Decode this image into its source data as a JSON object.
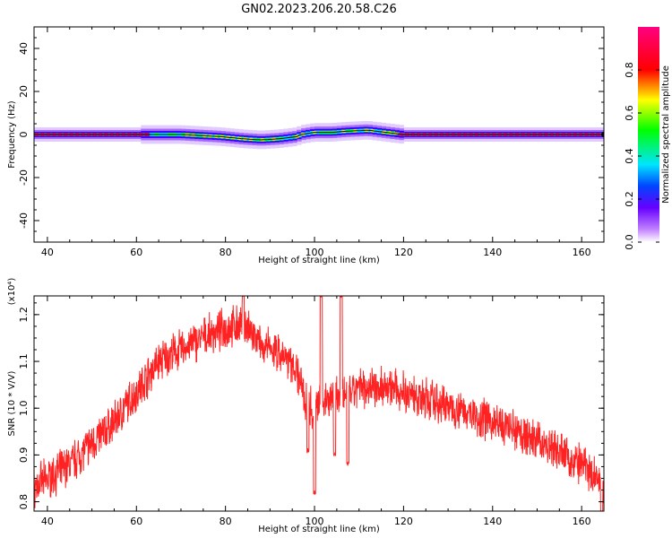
{
  "title": "GN02.2023.206.20.58.C26",
  "chart_data": [
    {
      "type": "heatmap",
      "xlabel": "Height of straight line (km)",
      "ylabel": "Frequency (Hz)",
      "xlim": [
        37,
        165
      ],
      "ylim": [
        -50,
        50
      ],
      "x_ticks": [
        40,
        60,
        80,
        100,
        120,
        140,
        160
      ],
      "y_ticks": [
        40,
        20,
        0,
        -20,
        -40
      ],
      "colorbar": {
        "label": "Normalized spectral amplitude",
        "ticks": [
          "0.0",
          "0.2",
          "0.4",
          "0.6",
          "0.8"
        ],
        "tick_values": [
          0.0,
          0.2,
          0.4,
          0.6,
          0.8
        ],
        "range": [
          0,
          1
        ],
        "colors": [
          "#ffffff",
          "#6600ff",
          "#00e5ff",
          "#00ff00",
          "#ffff00",
          "#ff0000",
          "#ff0080"
        ]
      },
      "ridge_frequency": {
        "x": [
          37,
          62,
          70,
          79,
          84,
          88,
          92,
          96,
          97,
          100,
          104,
          107,
          112,
          116,
          120,
          165
        ],
        "y": [
          0,
          0,
          0,
          -1,
          -2,
          -2.5,
          -2,
          -1,
          0,
          1,
          1,
          1.5,
          2,
          1,
          0,
          0
        ]
      }
    },
    {
      "type": "line",
      "xlabel": "Height of straight line (km)",
      "ylabel": "SNR (10 * V/V)",
      "yscale_label": "(x10⁴)",
      "xlim": [
        37,
        165
      ],
      "ylim": [
        0.78,
        1.24
      ],
      "x_ticks": [
        40,
        60,
        80,
        100,
        120,
        140,
        160
      ],
      "y_ticks": [
        1.2,
        1.1,
        1.0,
        0.9,
        0.8
      ],
      "series": [
        {
          "color": "#ff2222",
          "trend": {
            "x": [
              37,
              45,
              55,
              65,
              75,
              80,
              84,
              88,
              92,
              96,
              98,
              100,
              102,
              105,
              108,
              112,
              118,
              125,
              135,
              145,
              155,
              165
            ],
            "y": [
              0.83,
              0.88,
              0.97,
              1.1,
              1.15,
              1.17,
              1.18,
              1.13,
              1.12,
              1.08,
              1.02,
              0.99,
              1.02,
              1.03,
              1.03,
              1.05,
              1.04,
              1.02,
              0.99,
              0.95,
              0.91,
              0.84
            ]
          },
          "spikes": [
            {
              "x": 84.0,
              "y": 1.24
            },
            {
              "x": 98.5,
              "y": 0.91
            },
            {
              "x": 100.0,
              "y": 0.82
            },
            {
              "x": 101.5,
              "y": 1.24
            },
            {
              "x": 104.5,
              "y": 0.9
            },
            {
              "x": 106.0,
              "y": 1.24
            },
            {
              "x": 107.5,
              "y": 0.88
            },
            {
              "x": 164.5,
              "y": 0.78
            }
          ]
        }
      ]
    }
  ]
}
